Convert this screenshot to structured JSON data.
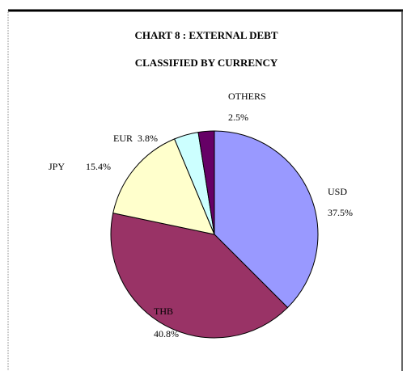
{
  "chart_data": {
    "type": "pie",
    "title": "CHART 8 : EXTERNAL DEBT",
    "subtitle": "CLASSIFIED BY CURRENCY",
    "categories": [
      "USD",
      "THB",
      "JPY",
      "EUR",
      "OTHERS"
    ],
    "values": [
      37.5,
      40.8,
      15.4,
      3.8,
      2.5
    ],
    "value_labels": [
      "37.5%",
      "40.8%",
      "15.4%",
      "3.8%",
      "2.5%"
    ],
    "colors": [
      "#9999ff",
      "#993366",
      "#ffffcc",
      "#ccffff",
      "#660066"
    ]
  }
}
